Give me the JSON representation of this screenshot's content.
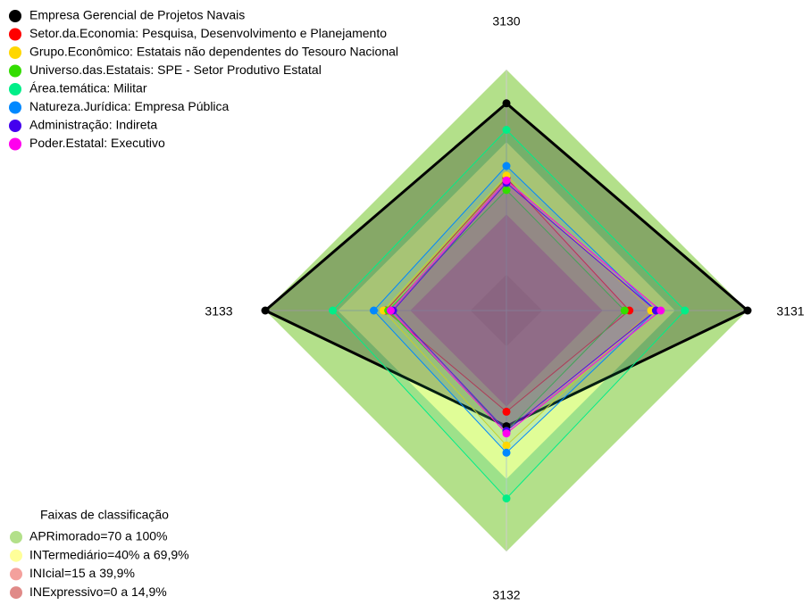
{
  "chart_data": {
    "type": "radar",
    "axes": [
      "3130",
      "3131",
      "3132",
      "3133"
    ],
    "rlim": [
      0,
      100
    ],
    "bands_title": "Faixas de classificação",
    "bands": [
      {
        "label": "APRimorado=70 a 100%",
        "color": "#b3e08a",
        "from": 70,
        "to": 100
      },
      {
        "label": "INTermediário=40% a 69,9%",
        "color": "#ffff99",
        "from": 40,
        "to": 69.9
      },
      {
        "label": "INIcial=15 a 39,9%",
        "color": "#f4a09c",
        "from": 15,
        "to": 39.9
      },
      {
        "label": "INExpressivo=0 a 14,9%",
        "color": "#e08a88",
        "from": 0,
        "to": 14.9
      }
    ],
    "series": [
      {
        "name": "Empresa Gerencial de Projetos Navais",
        "color": "#000000",
        "values": [
          86,
          100,
          48,
          100
        ]
      },
      {
        "name": "Setor.da.Economia: Pesquisa, Desenvolvimento e Planejamento",
        "color": "#ff0000",
        "values": [
          55,
          51,
          42,
          50
        ]
      },
      {
        "name": "Grupo.Econômico: Estatais não dependentes do Tesouro Nacional",
        "color": "#ffd700",
        "values": [
          56,
          60,
          56,
          51
        ]
      },
      {
        "name": "Universo.das.Estatais: SPE - Setor Produtivo Estatal",
        "color": "#33dd00",
        "values": [
          50,
          49,
          50,
          49
        ]
      },
      {
        "name": "Área.temática: Militar",
        "color": "#00ee88",
        "values": [
          75,
          74,
          78,
          72
        ]
      },
      {
        "name": "Natureza.Jurídica: Empresa Pública",
        "color": "#0088ff",
        "values": [
          60,
          62,
          59,
          55
        ]
      },
      {
        "name": "Administração: Indireta",
        "color": "#4400ee",
        "values": [
          53,
          62,
          50,
          47
        ]
      },
      {
        "name": "Poder.Estatal: Executivo",
        "color": "#ff00ee",
        "values": [
          54,
          64,
          51,
          48
        ]
      }
    ]
  }
}
